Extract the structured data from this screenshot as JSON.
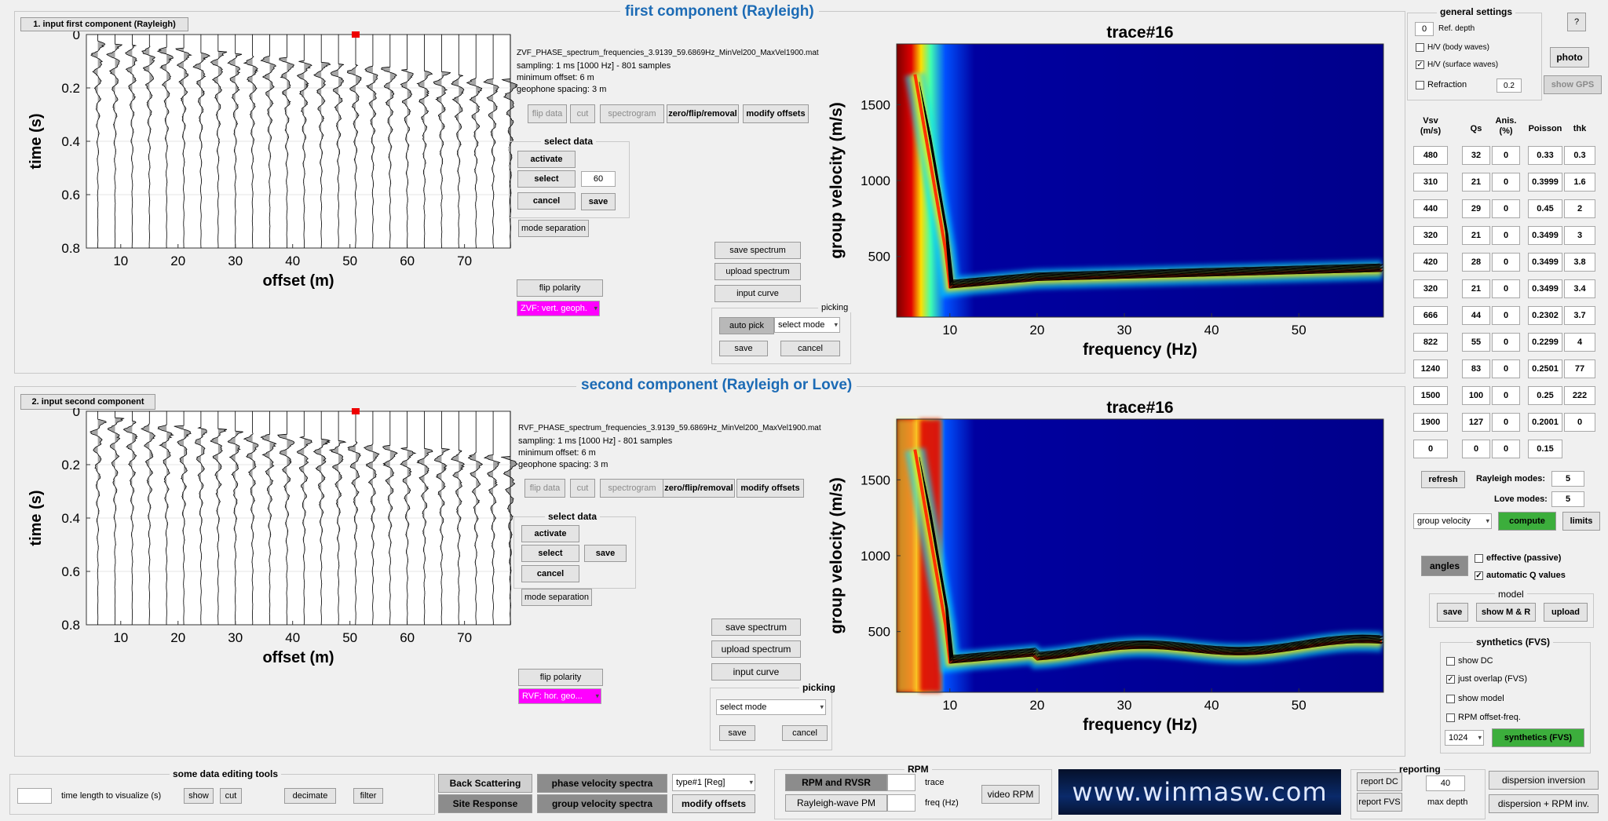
{
  "top": {
    "title": "first component (Rayleigh)",
    "input_button": "1. input first component (Rayleigh)",
    "info": [
      "ZVF_PHASE_spectrum_frequencies_3.9139_59.6869Hz_MinVel200_MaxVel1900.mat",
      "sampling: 1 ms [1000 Hz] - 801 samples",
      "minimum offset: 6 m",
      "geophone spacing: 3 m"
    ],
    "tools": [
      "flip data",
      "cut",
      "spectrogram",
      "zero/flip/removal",
      "modify offsets"
    ],
    "select_data": {
      "title": "select data",
      "activate": "activate",
      "select": "select",
      "value": "60",
      "cancel": "cancel",
      "save": "save"
    },
    "mode_separation": "mode separation",
    "flip_polarity": "flip polarity",
    "component_select": "ZVF: vert. geoph.",
    "spectrum_buttons": [
      "save spectrum",
      "upload spectrum",
      "input curve"
    ],
    "picking": {
      "title": "picking",
      "auto_pick": "auto pick",
      "mode": "select mode",
      "save": "save",
      "cancel": "cancel"
    },
    "seismo": {
      "xlabel": "offset (m)",
      "ylabel": "time (s)",
      "xticks": [
        "10",
        "20",
        "30",
        "40",
        "50",
        "60",
        "70"
      ],
      "yticks": [
        "0",
        "0.2",
        "0.4",
        "0.6",
        "0.8"
      ]
    },
    "spectrum": {
      "title": "trace#16",
      "xlabel": "frequency (Hz)",
      "ylabel": "group velocity (m/s)",
      "xticks": [
        "10",
        "20",
        "30",
        "40",
        "50"
      ],
      "yticks": [
        "1500",
        "1000",
        "500"
      ]
    }
  },
  "bottom": {
    "title": "second component (Rayleigh or Love)",
    "input_button": "2. input second component",
    "info": [
      "RVF_PHASE_spectrum_frequencies_3.9139_59.6869Hz_MinVel200_MaxVel1900.mat",
      "sampling: 1 ms [1000 Hz] - 801 samples",
      "minimum offset: 6 m",
      "geophone spacing: 3 m"
    ],
    "tools": [
      "flip data",
      "cut",
      "spectrogram",
      "zero/flip/removal",
      "modify offsets"
    ],
    "select_data": {
      "title": "select data",
      "activate": "activate",
      "select": "select",
      "cancel": "cancel",
      "save": "save"
    },
    "mode_separation": "mode separation",
    "flip_polarity": "flip polarity",
    "component_select": "RVF: hor. geo...",
    "spectrum_buttons": [
      "save spectrum",
      "upload spectrum",
      "input curve"
    ],
    "picking": {
      "title": "picking",
      "mode": "select mode",
      "save": "save",
      "cancel": "cancel"
    },
    "seismo": {
      "xlabel": "offset (m)",
      "ylabel": "time (s)",
      "xticks": [
        "10",
        "20",
        "30",
        "40",
        "50",
        "60",
        "70"
      ],
      "yticks": [
        "0",
        "0.2",
        "0.4",
        "0.6",
        "0.8"
      ]
    },
    "spectrum": {
      "title": "trace#16",
      "xlabel": "frequency (Hz)",
      "ylabel": "group velocity (m/s)",
      "xticks": [
        "10",
        "20",
        "30",
        "40",
        "50"
      ],
      "yticks": [
        "1500",
        "1000",
        "500"
      ]
    }
  },
  "general_settings": {
    "title": "general settings",
    "ref_depth_value": "0",
    "ref_depth_label": "Ref. depth",
    "hv_body": "H/V (body waves)",
    "hv_surface": "H/V (surface waves)",
    "refraction": "Refraction",
    "refraction_value": "0.2",
    "help": "?",
    "photo": "photo",
    "show_gps": "show GPS"
  },
  "model_table": {
    "headers": [
      "Vsv\n(m/s)",
      "Qs",
      "Anis.\n(%)",
      "Poisson",
      "thk"
    ],
    "rows": [
      [
        "480",
        "32",
        "0",
        "0.33",
        "0.3"
      ],
      [
        "310",
        "21",
        "0",
        "0.3999",
        "1.6"
      ],
      [
        "440",
        "29",
        "0",
        "0.45",
        "2"
      ],
      [
        "320",
        "21",
        "0",
        "0.3499",
        "3"
      ],
      [
        "420",
        "28",
        "0",
        "0.3499",
        "3.8"
      ],
      [
        "320",
        "21",
        "0",
        "0.3499",
        "3.4"
      ],
      [
        "666",
        "44",
        "0",
        "0.2302",
        "3.7"
      ],
      [
        "822",
        "55",
        "0",
        "0.2299",
        "4"
      ],
      [
        "1240",
        "83",
        "0",
        "0.2501",
        "77"
      ],
      [
        "1500",
        "100",
        "0",
        "0.25",
        "222"
      ],
      [
        "1900",
        "127",
        "0",
        "0.2001",
        "0"
      ],
      [
        "0",
        "0",
        "0",
        "0.15",
        ""
      ]
    ]
  },
  "right_controls": {
    "refresh": "refresh",
    "rayleigh_label": "Rayleigh modes:",
    "rayleigh_value": "5",
    "love_label": "Love modes:",
    "love_value": "5",
    "velocity_select": "group velocity",
    "compute": "compute",
    "limits": "limits",
    "angles": "angles",
    "effective": "effective (passive)",
    "auto_q": "automatic Q values",
    "model": {
      "title": "model",
      "save": "save",
      "show": "show M & R",
      "upload": "upload"
    },
    "synthetics": {
      "title": "synthetics (FVS)",
      "show_dc": "show DC",
      "just_overlap": "just overlap (FVS)",
      "show_model": "show model",
      "rpm_offset": "RPM offset-freq.",
      "size": "1024",
      "button": "synthetics (FVS)"
    }
  },
  "bottom_bar": {
    "tools_title": "some data editing tools",
    "time_length": "time length to visualize (s)",
    "show": "show",
    "cut": "cut",
    "decimate": "decimate",
    "filter": "filter",
    "back_scattering": "Back Scattering",
    "site_response": "Site Response",
    "phase_spectra": "phase velocity spectra",
    "group_spectra": "group velocity spectra",
    "type_select": "type#1 [Reg]",
    "modify_offsets": "modify offsets",
    "rpm": {
      "title": "RPM",
      "rpm_rvsr": "RPM and RVSR",
      "rayleigh_pm": "Rayleigh-wave PM",
      "trace": "trace",
      "freq": "freq (Hz)",
      "video": "video RPM"
    },
    "logo": "www.winmasw.com",
    "reporting": {
      "title": "reporting",
      "dc": "report DC",
      "fvs": "report FVS",
      "depth_value": "40",
      "depth_label": "max depth"
    },
    "dispersion_inversion": "dispersion inversion",
    "dispersion_rpm": "dispersion + RPM inv."
  },
  "colors": {
    "accent": "#1c6bb5",
    "green": "#3cae3c",
    "magenta": "#ff00ff",
    "spectrum_bg": "#00008b"
  }
}
